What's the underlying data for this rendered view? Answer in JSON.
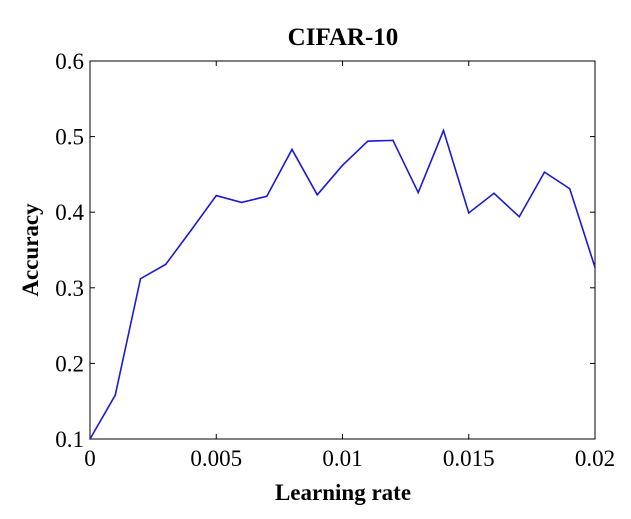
{
  "chart_data": {
    "type": "line",
    "title": "CIFAR-10",
    "xlabel": "Learning rate",
    "ylabel": "Accuracy",
    "xlim": [
      0,
      0.02
    ],
    "ylim": [
      0.1,
      0.6
    ],
    "x_ticks": [
      0,
      0.005,
      0.01,
      0.015,
      0.02
    ],
    "x_tick_labels": [
      "0",
      "0.005",
      "0.01",
      "0.015",
      "0.02"
    ],
    "y_ticks": [
      0.1,
      0.2,
      0.3,
      0.4,
      0.5,
      0.6
    ],
    "y_tick_labels": [
      "0.1",
      "0.2",
      "0.3",
      "0.4",
      "0.5",
      "0.6"
    ],
    "grid": false,
    "series": [
      {
        "color": "#1a1ad6",
        "x": [
          0,
          0.001,
          0.002,
          0.003,
          0.004,
          0.005,
          0.006,
          0.007,
          0.008,
          0.009,
          0.01,
          0.011,
          0.012,
          0.013,
          0.014,
          0.015,
          0.016,
          0.017,
          0.018,
          0.019,
          0.02
        ],
        "y": [
          0.1,
          0.158,
          0.312,
          0.331,
          0.376,
          0.422,
          0.413,
          0.421,
          0.483,
          0.423,
          0.462,
          0.494,
          0.495,
          0.426,
          0.508,
          0.399,
          0.425,
          0.394,
          0.453,
          0.431,
          0.327
        ]
      }
    ]
  }
}
